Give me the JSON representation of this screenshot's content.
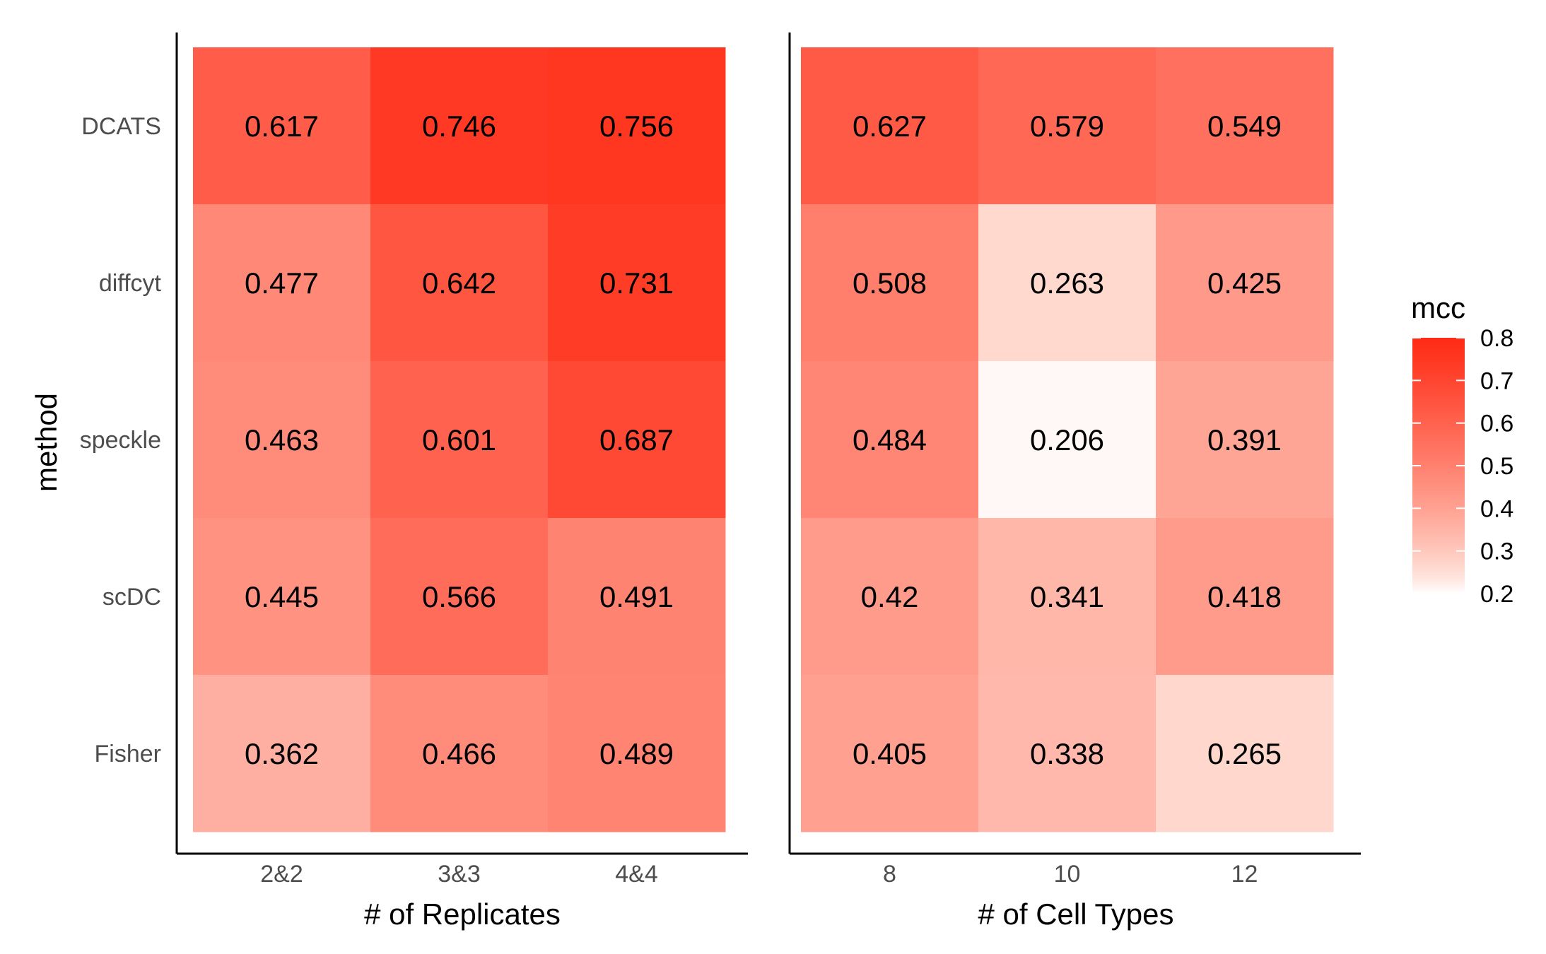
{
  "chart_data": [
    {
      "type": "heatmap",
      "xlabel": "# of Replicates",
      "ylabel": "method",
      "categories_x": [
        "2&2",
        "3&3",
        "4&4"
      ],
      "categories_y": [
        "DCATS",
        "diffcyt",
        "speckle",
        "scDC",
        "Fisher"
      ],
      "values": [
        [
          0.617,
          0.746,
          0.756
        ],
        [
          0.477,
          0.642,
          0.731
        ],
        [
          0.463,
          0.601,
          0.687
        ],
        [
          0.445,
          0.566,
          0.491
        ],
        [
          0.362,
          0.466,
          0.489
        ]
      ],
      "value_labels": [
        [
          "0.617",
          "0.746",
          "0.756"
        ],
        [
          "0.477",
          "0.642",
          "0.731"
        ],
        [
          "0.463",
          "0.601",
          "0.687"
        ],
        [
          "0.445",
          "0.566",
          "0.491"
        ],
        [
          "0.362",
          "0.466",
          "0.489"
        ]
      ]
    },
    {
      "type": "heatmap",
      "xlabel": "# of Cell Types",
      "ylabel": "",
      "categories_x": [
        "8",
        "10",
        "12"
      ],
      "categories_y": [
        "DCATS",
        "diffcyt",
        "speckle",
        "scDC",
        "Fisher"
      ],
      "values": [
        [
          0.627,
          0.579,
          0.549
        ],
        [
          0.508,
          0.263,
          0.425
        ],
        [
          0.484,
          0.206,
          0.391
        ],
        [
          0.42,
          0.341,
          0.418
        ],
        [
          0.405,
          0.338,
          0.265
        ]
      ],
      "value_labels": [
        [
          "0.627",
          "0.579",
          "0.549"
        ],
        [
          "0.508",
          "0.263",
          "0.425"
        ],
        [
          "0.484",
          "0.206",
          "0.391"
        ],
        [
          "0.42",
          "0.341",
          "0.418"
        ],
        [
          "0.405",
          "0.338",
          "0.265"
        ]
      ]
    }
  ],
  "legend": {
    "title": "mcc",
    "ticks": [
      "0.8",
      "0.7",
      "0.6",
      "0.5",
      "0.4",
      "0.3",
      "0.2"
    ],
    "tick_values": [
      0.8,
      0.7,
      0.6,
      0.5,
      0.4,
      0.3,
      0.2
    ],
    "range": [
      0.2,
      0.8
    ],
    "low_color": "#ffffff",
    "high_color": "#ff2a14"
  }
}
